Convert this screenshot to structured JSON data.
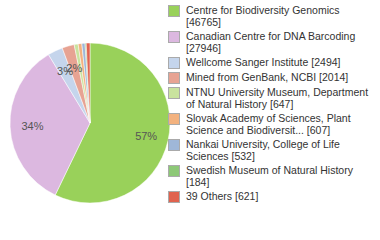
{
  "chart_data": {
    "type": "pie",
    "categories": [
      "Centre for Biodiversity Genomics [46765]",
      "Canadian Centre for DNA Barcoding [27946]",
      "Wellcome Sanger Institute [2494]",
      "Mined from GenBank, NCBI [2014]",
      "NTNU University Museum, Department of Natural History [647]",
      "Slovak Academy of Sciences, Plant Science and Biodiversit... [607]",
      "Nankai University, College of Life Sciences [532]",
      "Swedish Museum of Natural History [184]",
      "39 Others [621]"
    ],
    "values": [
      46765,
      27946,
      2494,
      2014,
      647,
      607,
      532,
      184,
      621
    ],
    "value_labels": [
      "57%",
      "34%",
      "3%",
      "2%",
      null,
      null,
      null,
      null,
      null
    ],
    "data_labels": true,
    "colors": [
      "#99d15a",
      "#dcb8e0",
      "#c5d5ec",
      "#e7a393",
      "#c9e39e",
      "#f3b27f",
      "#9fb7d8",
      "#8dc877",
      "#e0634f"
    ],
    "legend": "right"
  }
}
